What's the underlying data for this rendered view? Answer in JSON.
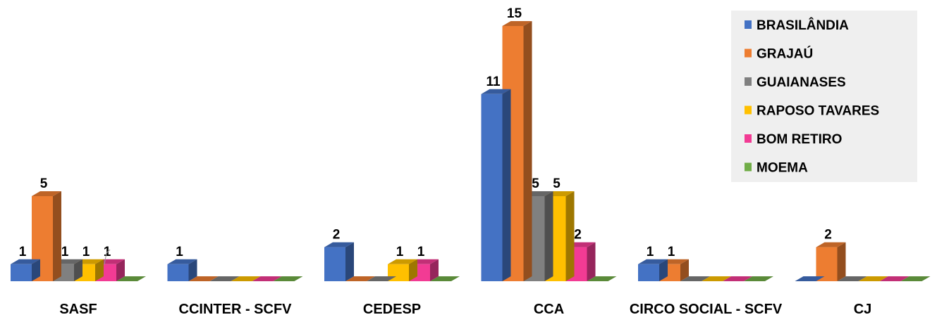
{
  "chart_data": {
    "type": "bar",
    "categories": [
      "SASF",
      "CCINTER - SCFV",
      "CEDESP",
      "CCA",
      "CIRCO SOCIAL - SCFV",
      "CJ"
    ],
    "series": [
      {
        "name": "BRASILÂNDIA",
        "values": [
          1,
          1,
          2,
          11,
          1,
          0
        ]
      },
      {
        "name": "GRAJAÚ",
        "values": [
          5,
          0,
          0,
          15,
          1,
          2
        ]
      },
      {
        "name": "GUAIANASES",
        "values": [
          1,
          0,
          0,
          5,
          0,
          0
        ]
      },
      {
        "name": "RAPOSO TAVARES",
        "values": [
          1,
          0,
          1,
          5,
          0,
          0
        ]
      },
      {
        "name": "BOM RETIRO",
        "values": [
          1,
          0,
          1,
          2,
          0,
          0
        ]
      },
      {
        "name": "MOEMA",
        "values": [
          0,
          0,
          0,
          0,
          0,
          0
        ]
      }
    ],
    "colors": [
      "#4472C4",
      "#ED7D31",
      "#808080",
      "#FFC000",
      "#F23B94",
      "#70AD47"
    ],
    "legend_position": "top-right",
    "grid": false,
    "title": "",
    "xlabel": "",
    "ylabel": "",
    "ylim": [
      0,
      15
    ]
  }
}
